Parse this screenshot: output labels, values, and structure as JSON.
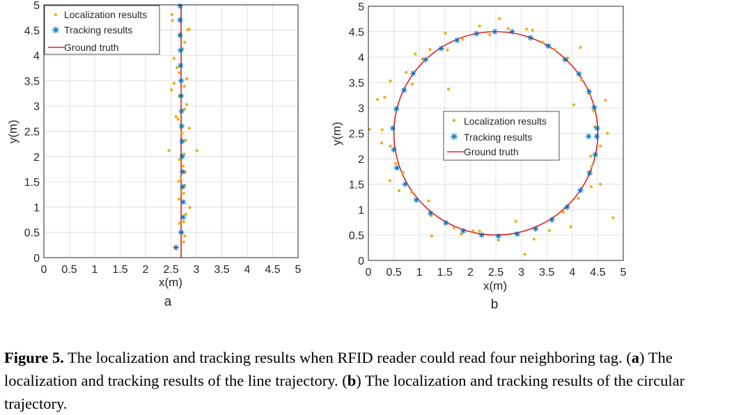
{
  "colors": {
    "localization": "#EDB120",
    "tracking": "#0072BD",
    "truth": "#E02020",
    "grid": "#e0e0e0",
    "axis": "#262626"
  },
  "caption": {
    "fig_label": "Figure 5.",
    "fig_text": " The localization and tracking results when RFID reader could read four neighboring tag.",
    "a_open": " (",
    "a_label": "a",
    "a_text": ") The localization and tracking results of the line trajectory. (",
    "b_label": "b",
    "b_text": ") The localization and tracking results of the circular trajectory."
  },
  "chart_data": [
    {
      "type": "scatter",
      "panel_label": "a",
      "title": "",
      "xlabel": "x(m)",
      "ylabel": "y(m)",
      "xlim": [
        0,
        5
      ],
      "ylim": [
        0,
        5
      ],
      "xticks": [
        "0",
        "0.5",
        "1",
        "1.5",
        "2",
        "2.5",
        "3",
        "3.5",
        "4",
        "4.5",
        "5"
      ],
      "yticks": [
        "0",
        "0.5",
        "1",
        "1.5",
        "2",
        "2.5",
        "3",
        "3.5",
        "4",
        "4.5",
        "5"
      ],
      "grid": true,
      "legend_position": "top-left",
      "legend": [
        "Localization results",
        "Tracking results",
        "Ground truth"
      ],
      "series": [
        {
          "name": "Localization results",
          "marker": "dot",
          "points": [
            [
              2.58,
              0.2
            ],
            [
              2.75,
              0.31
            ],
            [
              2.72,
              0.5
            ],
            [
              2.77,
              0.43
            ],
            [
              2.67,
              0.68
            ],
            [
              2.75,
              0.71
            ],
            [
              2.79,
              0.86
            ],
            [
              2.87,
              0.99
            ],
            [
              2.66,
              1.16
            ],
            [
              2.75,
              1.27
            ],
            [
              2.7,
              1.36
            ],
            [
              2.77,
              1.43
            ],
            [
              2.65,
              1.51
            ],
            [
              2.69,
              1.58
            ],
            [
              2.78,
              1.69
            ],
            [
              2.74,
              1.81
            ],
            [
              2.67,
              1.94
            ],
            [
              2.76,
              2.05
            ],
            [
              2.46,
              2.12
            ],
            [
              3.01,
              2.12
            ],
            [
              2.79,
              2.32
            ],
            [
              2.72,
              2.46
            ],
            [
              2.86,
              2.56
            ],
            [
              2.64,
              2.74
            ],
            [
              2.6,
              2.79
            ],
            [
              2.77,
              2.94
            ],
            [
              2.81,
              3.03
            ],
            [
              2.67,
              3.19
            ],
            [
              2.51,
              3.32
            ],
            [
              2.76,
              3.39
            ],
            [
              2.56,
              3.45
            ],
            [
              2.81,
              3.54
            ],
            [
              2.66,
              3.66
            ],
            [
              2.62,
              3.76
            ],
            [
              2.56,
              3.94
            ],
            [
              2.73,
              4.13
            ],
            [
              2.77,
              4.26
            ],
            [
              2.68,
              4.39
            ],
            [
              2.83,
              4.51
            ],
            [
              2.86,
              4.52
            ],
            [
              2.53,
              4.69
            ],
            [
              2.52,
              4.81
            ]
          ]
        },
        {
          "name": "Tracking results",
          "marker": "asterisk",
          "points": [
            [
              2.6,
              0.2
            ],
            [
              2.7,
              0.5
            ],
            [
              2.74,
              0.8
            ],
            [
              2.74,
              1.1
            ],
            [
              2.73,
              1.4
            ],
            [
              2.73,
              1.7
            ],
            [
              2.72,
              2.0
            ],
            [
              2.72,
              2.3
            ],
            [
              2.71,
              2.6
            ],
            [
              2.71,
              2.9
            ],
            [
              2.7,
              3.2
            ],
            [
              2.7,
              3.5
            ],
            [
              2.69,
              3.8
            ],
            [
              2.69,
              4.1
            ],
            [
              2.68,
              4.4
            ],
            [
              2.68,
              4.7
            ],
            [
              2.68,
              4.98
            ]
          ]
        },
        {
          "name": "Ground truth",
          "marker": "line",
          "points": [
            [
              2.7,
              0.0
            ],
            [
              2.7,
              5.0
            ]
          ]
        }
      ]
    },
    {
      "type": "scatter",
      "panel_label": "b",
      "title": "",
      "xlabel": "x(m)",
      "ylabel": "y(m)",
      "xlim": [
        0,
        5
      ],
      "ylim": [
        0,
        5
      ],
      "xticks": [
        "0",
        "0.5",
        "1",
        "1.5",
        "2",
        "2.5",
        "3",
        "3.5",
        "4",
        "4.5",
        "5"
      ],
      "yticks": [
        "0",
        "0.5",
        "1",
        "1.5",
        "2",
        "2.5",
        "3",
        "3.5",
        "4",
        "4.5",
        "5"
      ],
      "grid": true,
      "legend_position": "center",
      "legend": [
        "Localization results",
        "Tracking results",
        "Ground truth"
      ],
      "circle_center": [
        2.5,
        2.5
      ],
      "circle_radius": 2.0,
      "series": [
        {
          "name": "Localization results",
          "marker": "dot",
          "points": [
            [
              4.69,
              2.5
            ],
            [
              4.42,
              2.94
            ],
            [
              4.65,
              3.15
            ],
            [
              4.33,
              3.28
            ],
            [
              4.18,
              3.55
            ],
            [
              3.91,
              3.98
            ],
            [
              3.65,
              4.15
            ],
            [
              3.42,
              4.29
            ],
            [
              3.1,
              4.55
            ],
            [
              2.74,
              4.56
            ],
            [
              2.57,
              4.76
            ],
            [
              2.18,
              4.61
            ],
            [
              1.85,
              4.35
            ],
            [
              1.51,
              4.47
            ],
            [
              1.21,
              4.15
            ],
            [
              0.92,
              4.06
            ],
            [
              0.74,
              3.7
            ],
            [
              0.43,
              3.53
            ],
            [
              0.32,
              3.21
            ],
            [
              0.55,
              2.97
            ],
            [
              0.27,
              2.57
            ],
            [
              0.43,
              2.25
            ],
            [
              0.54,
              1.91
            ],
            [
              0.68,
              1.73
            ],
            [
              0.85,
              1.34
            ],
            [
              1.18,
              1.17
            ],
            [
              1.23,
              0.88
            ],
            [
              1.68,
              0.64
            ],
            [
              1.82,
              0.52
            ],
            [
              2.18,
              0.58
            ],
            [
              2.55,
              0.4
            ],
            [
              2.89,
              0.77
            ],
            [
              3.25,
              0.42
            ],
            [
              3.55,
              0.59
            ],
            [
              3.82,
              0.95
            ],
            [
              4.12,
              1.22
            ],
            [
              4.37,
              1.45
            ],
            [
              4.38,
              1.85
            ],
            [
              4.55,
              2.25
            ],
            [
              4.8,
              0.84
            ],
            [
              0.02,
              2.58
            ],
            [
              1.57,
              3.37
            ],
            [
              3.07,
              0.12
            ],
            [
              0.6,
              1.37
            ],
            [
              4.36,
              2.05
            ],
            [
              0.26,
              2.31
            ],
            [
              2.38,
              4.44
            ],
            [
              4.44,
              2.63
            ],
            [
              1.06,
              3.96
            ],
            [
              4.03,
              3.06
            ],
            [
              3.97,
              0.66
            ],
            [
              0.86,
              3.47
            ],
            [
              4.16,
              4.19
            ],
            [
              0.18,
              3.17
            ],
            [
              1.24,
              0.48
            ],
            [
              2.05,
              0.58
            ],
            [
              3.22,
              4.53
            ],
            [
              4.55,
              1.5
            ],
            [
              0.42,
              1.57
            ],
            [
              1.55,
              4.14
            ]
          ]
        },
        {
          "name": "Tracking results",
          "marker": "asterisk",
          "points": [
            [
              4.49,
              2.6
            ],
            [
              4.43,
              3.01
            ],
            [
              4.33,
              3.32
            ],
            [
              4.13,
              3.67
            ],
            [
              3.86,
              3.95
            ],
            [
              3.53,
              4.22
            ],
            [
              3.18,
              4.38
            ],
            [
              2.82,
              4.5
            ],
            [
              2.48,
              4.5
            ],
            [
              2.12,
              4.46
            ],
            [
              1.74,
              4.33
            ],
            [
              1.43,
              4.17
            ],
            [
              1.12,
              3.95
            ],
            [
              0.88,
              3.68
            ],
            [
              0.7,
              3.35
            ],
            [
              0.55,
              2.98
            ],
            [
              0.48,
              2.6
            ],
            [
              0.5,
              2.18
            ],
            [
              0.56,
              1.82
            ],
            [
              0.72,
              1.5
            ],
            [
              0.94,
              1.19
            ],
            [
              1.22,
              0.93
            ],
            [
              1.52,
              0.74
            ],
            [
              1.86,
              0.58
            ],
            [
              2.22,
              0.5
            ],
            [
              2.55,
              0.48
            ],
            [
              2.92,
              0.52
            ],
            [
              3.28,
              0.62
            ],
            [
              3.6,
              0.8
            ],
            [
              3.9,
              1.05
            ],
            [
              4.16,
              1.38
            ],
            [
              4.34,
              1.72
            ],
            [
              4.45,
              2.08
            ],
            [
              4.32,
              2.44
            ],
            [
              4.48,
              2.44
            ]
          ]
        },
        {
          "name": "Ground truth",
          "marker": "circle",
          "points": []
        }
      ]
    }
  ]
}
